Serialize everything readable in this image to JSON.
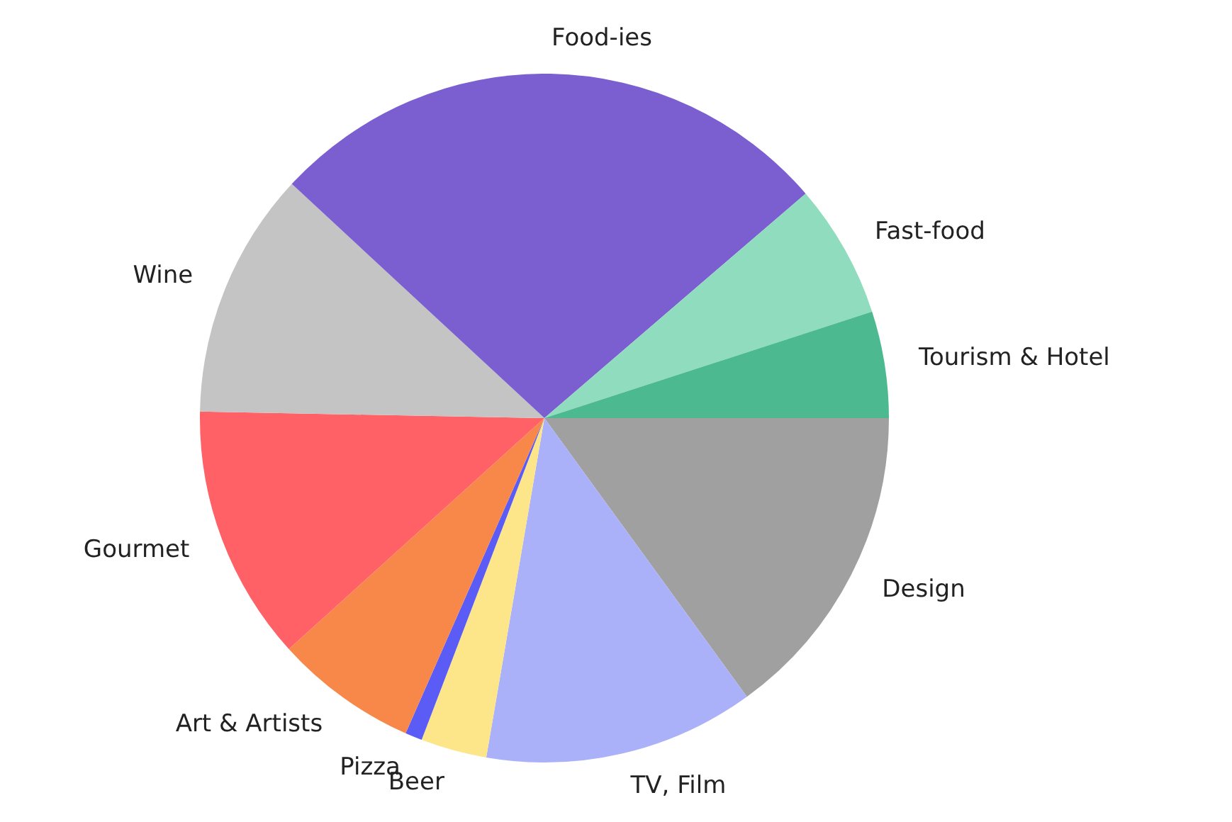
{
  "chart_data": {
    "type": "pie",
    "categories": [
      "Tourism & Hotel",
      "Fast-food",
      "Food-ies",
      "Wine",
      "Gourmet",
      "Art & Artists",
      "Pizza",
      "Beer",
      "TV, Film",
      "Design"
    ],
    "values": [
      5,
      6.3,
      26.8,
      11.6,
      12,
      6.7,
      0.8,
      3.1,
      12.7,
      15
    ],
    "colors": [
      "#4cb991",
      "#8fdcbf",
      "#7b5fd1",
      "#c4c4c4",
      "#ff6166",
      "#f7884a",
      "#5b5bf5",
      "#fde68a",
      "#aab1f8",
      "#a0a0a0"
    ],
    "legend": false
  }
}
